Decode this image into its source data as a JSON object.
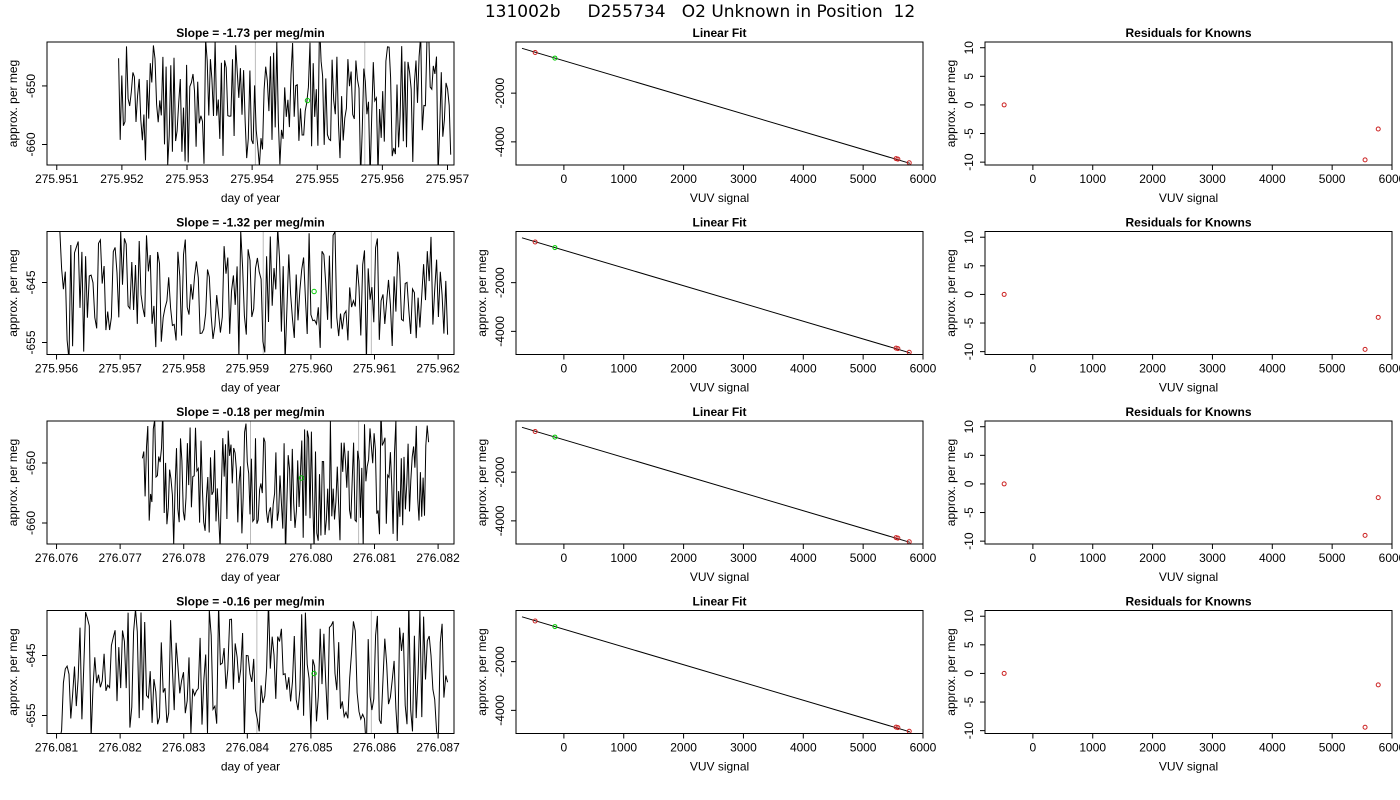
{
  "page_title": "131002b     D255734   O2 Unknown in Position  12",
  "colors": {
    "trace": "#000000",
    "unknown": "#00cc00",
    "known": "#cc2222",
    "frame": "#000000",
    "vline": "#bbbbbb"
  },
  "chart_data": [
    {
      "row": 1,
      "type": "line",
      "title": "Slope =  -1.73  per meg/min",
      "xlabel": "day of year",
      "ylabel": "approx. per meg",
      "xlim": [
        275.95085,
        275.9571
      ],
      "ylim": [
        -663.5,
        -642.5
      ],
      "xticks": [
        "275.951",
        "275.952",
        "275.953",
        "275.954",
        "275.955",
        "275.956",
        "275.957"
      ],
      "yticks": [
        -650,
        -660
      ],
      "series": [
        {
          "x_start": 275.95195,
          "x_end": 275.95705,
          "seed": 11,
          "mean": -652.5,
          "amp": 11.5
        }
      ],
      "vlines": [
        275.95405,
        275.95573
      ],
      "unknown_point": {
        "x": 275.95485,
        "y": -652.5
      }
    },
    {
      "row": 1,
      "type": "scatter",
      "title": "Linear Fit",
      "xlabel": "VUV signal",
      "ylabel": "",
      "xlim": [
        -800,
        6000
      ],
      "ylim": [
        -4950,
        100
      ],
      "xticks": [
        0,
        1000,
        2000,
        3000,
        4000,
        5000,
        6000
      ],
      "yticks": [
        -2000,
        -4000
      ],
      "fit_line": {
        "x": [
          -700,
          5780
        ],
        "y": [
          -160,
          -4880
        ]
      },
      "known_points": [
        {
          "x": -480,
          "y": -330
        },
        {
          "x": 5550,
          "y": -4690
        },
        {
          "x": 5580,
          "y": -4710
        },
        {
          "x": 5770,
          "y": -4860
        }
      ],
      "unknown_point": {
        "x": -150,
        "y": -560
      }
    },
    {
      "row": 1,
      "type": "scatter",
      "title": "Residuals for Knowns",
      "xlabel": "VUV signal",
      "ylabel": "approx. per meg",
      "xlim": [
        -800,
        6000
      ],
      "ylim": [
        -10.5,
        11
      ],
      "xticks": [
        0,
        1000,
        2000,
        3000,
        4000,
        5000,
        6000
      ],
      "yticks": [
        10,
        5,
        0,
        -5,
        -10
      ],
      "known_points": [
        {
          "x": -480,
          "y": 0
        },
        {
          "x": 5550,
          "y": -9.6
        },
        {
          "x": 5770,
          "y": -4.2
        }
      ]
    },
    {
      "row": 2,
      "type": "line",
      "title": "Slope =  -1.32  per meg/min",
      "xlabel": "day of year",
      "ylabel": "approx. per meg",
      "xlim": [
        275.95585,
        275.96225
      ],
      "ylim": [
        -657,
        -636.5
      ],
      "xticks": [
        "275.956",
        "275.957",
        "275.958",
        "275.959",
        "275.960",
        "275.961",
        "275.962"
      ],
      "yticks": [
        -645,
        -655
      ],
      "series": [
        {
          "x_start": 275.95605,
          "x_end": 275.96215,
          "seed": 23,
          "mean": -646.5,
          "amp": 11.0
        }
      ],
      "vlines": [
        275.95925,
        275.96095
      ],
      "unknown_point": {
        "x": 275.96005,
        "y": -646.5
      }
    },
    {
      "row": 2,
      "type": "scatter",
      "title": "Linear Fit",
      "xlabel": "VUV signal",
      "ylabel": "approx. per meg",
      "xlim": [
        -800,
        6000
      ],
      "ylim": [
        -4950,
        100
      ],
      "xticks": [
        0,
        1000,
        2000,
        3000,
        4000,
        5000,
        6000
      ],
      "yticks": [
        -2000,
        -4000
      ],
      "fit_line": {
        "x": [
          -700,
          5780
        ],
        "y": [
          -160,
          -4880
        ]
      },
      "known_points": [
        {
          "x": -480,
          "y": -330
        },
        {
          "x": 5550,
          "y": -4690
        },
        {
          "x": 5580,
          "y": -4710
        },
        {
          "x": 5770,
          "y": -4860
        }
      ],
      "unknown_point": {
        "x": -150,
        "y": -560
      }
    },
    {
      "row": 2,
      "type": "scatter",
      "title": "Residuals for Knowns",
      "xlabel": "VUV signal",
      "ylabel": "approx. per meg",
      "xlim": [
        -800,
        6000
      ],
      "ylim": [
        -10.5,
        11
      ],
      "xticks": [
        0,
        1000,
        2000,
        3000,
        4000,
        5000,
        6000
      ],
      "yticks": [
        10,
        5,
        0,
        -5,
        -10
      ],
      "known_points": [
        {
          "x": -480,
          "y": 0
        },
        {
          "x": 5550,
          "y": -9.6
        },
        {
          "x": 5770,
          "y": -4.0
        }
      ]
    },
    {
      "row": 3,
      "type": "line",
      "title": "Slope =  -0.18  per meg/min",
      "xlabel": "day of year",
      "ylabel": "approx. per meg",
      "xlim": [
        276.07585,
        276.08225
      ],
      "ylim": [
        -663.5,
        -643
      ],
      "xticks": [
        "276.076",
        "276.077",
        "276.078",
        "276.079",
        "276.080",
        "276.081",
        "276.082"
      ],
      "yticks": [
        -650,
        -660
      ],
      "series": [
        {
          "x_start": 276.07735,
          "x_end": 276.08185,
          "seed": 37,
          "mean": -653.0,
          "amp": 11.5
        }
      ],
      "vlines": [
        276.07905,
        276.08075
      ],
      "unknown_point": {
        "x": 276.07985,
        "y": -652.5
      }
    },
    {
      "row": 3,
      "type": "scatter",
      "title": "Linear Fit",
      "xlabel": "VUV signal",
      "ylabel": "approx. per meg",
      "xlim": [
        -800,
        6000
      ],
      "ylim": [
        -4950,
        100
      ],
      "xticks": [
        0,
        1000,
        2000,
        3000,
        4000,
        5000,
        6000
      ],
      "yticks": [
        -2000,
        -4000
      ],
      "fit_line": {
        "x": [
          -700,
          5780
        ],
        "y": [
          -160,
          -4880
        ]
      },
      "known_points": [
        {
          "x": -480,
          "y": -330
        },
        {
          "x": 5550,
          "y": -4690
        },
        {
          "x": 5580,
          "y": -4710
        },
        {
          "x": 5770,
          "y": -4860
        }
      ],
      "unknown_point": {
        "x": -150,
        "y": -560
      }
    },
    {
      "row": 3,
      "type": "scatter",
      "title": "Residuals for Knowns",
      "xlabel": "VUV signal",
      "ylabel": "approx. per meg",
      "xlim": [
        -800,
        6000
      ],
      "ylim": [
        -10.5,
        11
      ],
      "xticks": [
        0,
        1000,
        2000,
        3000,
        4000,
        5000,
        6000
      ],
      "yticks": [
        10,
        5,
        0,
        -5,
        -10
      ],
      "known_points": [
        {
          "x": -480,
          "y": 0
        },
        {
          "x": 5550,
          "y": -9.0
        },
        {
          "x": 5770,
          "y": -2.4
        }
      ]
    },
    {
      "row": 4,
      "type": "line",
      "title": "Slope =  -0.16  per meg/min",
      "xlabel": "day of year",
      "ylabel": "approx. per meg",
      "xlim": [
        276.08085,
        276.08725
      ],
      "ylim": [
        -658,
        -637.5
      ],
      "xticks": [
        "276.081",
        "276.082",
        "276.083",
        "276.084",
        "276.085",
        "276.086",
        "276.087"
      ],
      "yticks": [
        -645,
        -655
      ],
      "series": [
        {
          "x_start": 276.08105,
          "x_end": 276.08715,
          "seed": 53,
          "mean": -648.0,
          "amp": 11.0
        }
      ],
      "vlines": [
        276.08415,
        276.08595
      ],
      "unknown_point": {
        "x": 276.08505,
        "y": -648.0
      }
    },
    {
      "row": 4,
      "type": "scatter",
      "title": "Linear Fit",
      "xlabel": "VUV signal",
      "ylabel": "approx. per meg",
      "xlim": [
        -800,
        6000
      ],
      "ylim": [
        -4950,
        100
      ],
      "xticks": [
        0,
        1000,
        2000,
        3000,
        4000,
        5000,
        6000
      ],
      "yticks": [
        -2000,
        -4000
      ],
      "fit_line": {
        "x": [
          -700,
          5780
        ],
        "y": [
          -160,
          -4880
        ]
      },
      "known_points": [
        {
          "x": -480,
          "y": -330
        },
        {
          "x": 5550,
          "y": -4690
        },
        {
          "x": 5580,
          "y": -4710
        },
        {
          "x": 5770,
          "y": -4860
        }
      ],
      "unknown_point": {
        "x": -150,
        "y": -560
      }
    },
    {
      "row": 4,
      "type": "scatter",
      "title": "Residuals for Knowns",
      "xlabel": "VUV signal",
      "ylabel": "approx. per meg",
      "xlim": [
        -800,
        6000
      ],
      "ylim": [
        -10.5,
        11
      ],
      "xticks": [
        0,
        1000,
        2000,
        3000,
        4000,
        5000,
        6000
      ],
      "yticks": [
        10,
        5,
        0,
        -5,
        -10
      ],
      "known_points": [
        {
          "x": -480,
          "y": 0
        },
        {
          "x": 5550,
          "y": -9.4
        },
        {
          "x": 5770,
          "y": -2.0
        }
      ]
    }
  ]
}
